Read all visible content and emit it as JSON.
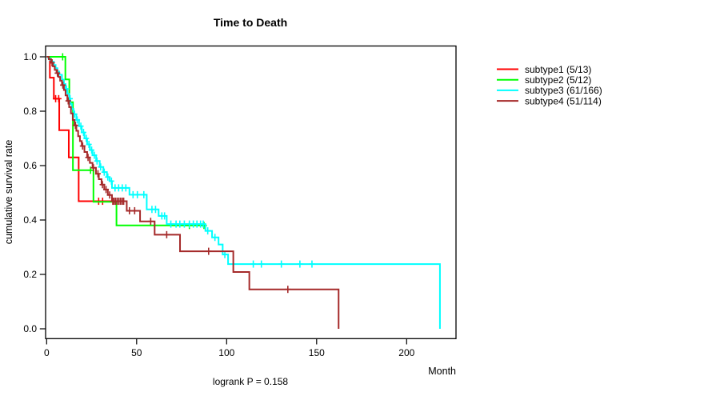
{
  "chart_data": {
    "type": "line",
    "variant": "kaplan-meier-step-curves",
    "title": "Time to Death",
    "xlabel": "Month",
    "ylabel": "cumulative survival rate",
    "annotation": "logrank P = 0.158",
    "xlim": [
      0,
      227
    ],
    "ylim": [
      0.0,
      1.0
    ],
    "x_ticks": [
      0,
      50,
      100,
      150,
      200
    ],
    "y_ticks": [
      1.0,
      0.8,
      0.6,
      0.4,
      0.2,
      0.0
    ],
    "grid": "off",
    "legend_position": "right-outside",
    "series": [
      {
        "name": "subtype1 (5/13)",
        "color": "#FF0000",
        "steps": [
          [
            0,
            1.0
          ],
          [
            1.8,
            0.923
          ],
          [
            4,
            0.846
          ],
          [
            7,
            0.73
          ],
          [
            12.3,
            0.63
          ],
          [
            17.8,
            0.469
          ]
        ],
        "end_time": 38.8,
        "censor_times": [
          5,
          6.7,
          28.9,
          31.1,
          36.8
        ]
      },
      {
        "name": "subtype2 (5/12)",
        "color": "#00FF00",
        "steps": [
          [
            0,
            1.0
          ],
          [
            10.4,
            0.917
          ],
          [
            12.6,
            0.833
          ],
          [
            14.6,
            0.583
          ],
          [
            26,
            0.467
          ],
          [
            38.8,
            0.38
          ]
        ],
        "end_time": 88.9,
        "censor_times": [
          8.9,
          24.4,
          79.3,
          87.4
        ]
      },
      {
        "name": "subtype3 (61/166)",
        "color": "#00FFFF",
        "steps": [
          [
            0,
            1.0
          ],
          [
            1,
            0.994
          ],
          [
            2,
            0.988
          ],
          [
            3,
            0.982
          ],
          [
            4,
            0.97
          ],
          [
            5,
            0.958
          ],
          [
            6,
            0.946
          ],
          [
            7,
            0.934
          ],
          [
            8.5,
            0.916
          ],
          [
            9.6,
            0.9
          ],
          [
            10.5,
            0.882
          ],
          [
            11.5,
            0.864
          ],
          [
            12.5,
            0.846
          ],
          [
            13.2,
            0.827
          ],
          [
            14,
            0.808
          ],
          [
            15,
            0.789
          ],
          [
            16.5,
            0.768
          ],
          [
            18,
            0.745
          ],
          [
            19.5,
            0.722
          ],
          [
            21,
            0.7
          ],
          [
            22.5,
            0.678
          ],
          [
            24,
            0.657
          ],
          [
            25.5,
            0.638
          ],
          [
            27.5,
            0.617
          ],
          [
            29.5,
            0.595
          ],
          [
            31.5,
            0.576
          ],
          [
            33.5,
            0.558
          ],
          [
            35,
            0.543
          ],
          [
            36.3,
            0.518
          ],
          [
            46,
            0.493
          ],
          [
            55.6,
            0.439
          ],
          [
            62.2,
            0.415
          ],
          [
            66.7,
            0.385
          ],
          [
            88.2,
            0.36
          ],
          [
            91.9,
            0.336
          ],
          [
            95.5,
            0.31
          ],
          [
            97.8,
            0.273
          ],
          [
            100.8,
            0.238
          ],
          [
            218.5,
            0.0
          ]
        ],
        "end_time": 218.5,
        "censor_times": [
          11,
          13,
          15.5,
          17,
          19,
          20.5,
          22,
          23.5,
          25,
          26.5,
          28,
          30,
          32,
          34,
          36,
          38,
          40,
          42,
          44,
          48,
          50.4,
          54,
          58.5,
          60.5,
          64,
          65.5,
          69,
          71.9,
          74,
          76.5,
          79.3,
          81.5,
          83.5,
          85.5,
          87,
          89.5,
          93.5,
          99,
          114.8,
          119.3,
          130.4,
          140.7,
          147.4
        ]
      },
      {
        "name": "subtype4 (51/114)",
        "color": "#A52A2A",
        "steps": [
          [
            0,
            1.0
          ],
          [
            1.2,
            0.991
          ],
          [
            2.5,
            0.978
          ],
          [
            3.5,
            0.965
          ],
          [
            4.5,
            0.952
          ],
          [
            5.5,
            0.94
          ],
          [
            6.5,
            0.926
          ],
          [
            7.5,
            0.912
          ],
          [
            8.5,
            0.896
          ],
          [
            9.6,
            0.878
          ],
          [
            10.5,
            0.858
          ],
          [
            11.5,
            0.838
          ],
          [
            12.5,
            0.815
          ],
          [
            13.5,
            0.792
          ],
          [
            14.5,
            0.768
          ],
          [
            15.5,
            0.748
          ],
          [
            16.5,
            0.728
          ],
          [
            17.5,
            0.708
          ],
          [
            18.5,
            0.69
          ],
          [
            19.5,
            0.672
          ],
          [
            21,
            0.65
          ],
          [
            22.5,
            0.63
          ],
          [
            24,
            0.61
          ],
          [
            25.5,
            0.592
          ],
          [
            27.4,
            0.57
          ],
          [
            29,
            0.55
          ],
          [
            30.5,
            0.53
          ],
          [
            32,
            0.512
          ],
          [
            34,
            0.492
          ],
          [
            36.3,
            0.469
          ],
          [
            44.5,
            0.434
          ],
          [
            51.9,
            0.395
          ],
          [
            60,
            0.346
          ],
          [
            74.1,
            0.285
          ],
          [
            103.7,
            0.209
          ],
          [
            112.6,
            0.145
          ],
          [
            162.2,
            0.0
          ]
        ],
        "end_time": 162.2,
        "censor_times": [
          3,
          6,
          9,
          12,
          16,
          20,
          23,
          26,
          28.5,
          31,
          33,
          35,
          36.8,
          37.6,
          38.4,
          39.3,
          40.2,
          41.1,
          42,
          42.8,
          46,
          48.9,
          57.8,
          66.7,
          90,
          134
        ]
      }
    ]
  }
}
